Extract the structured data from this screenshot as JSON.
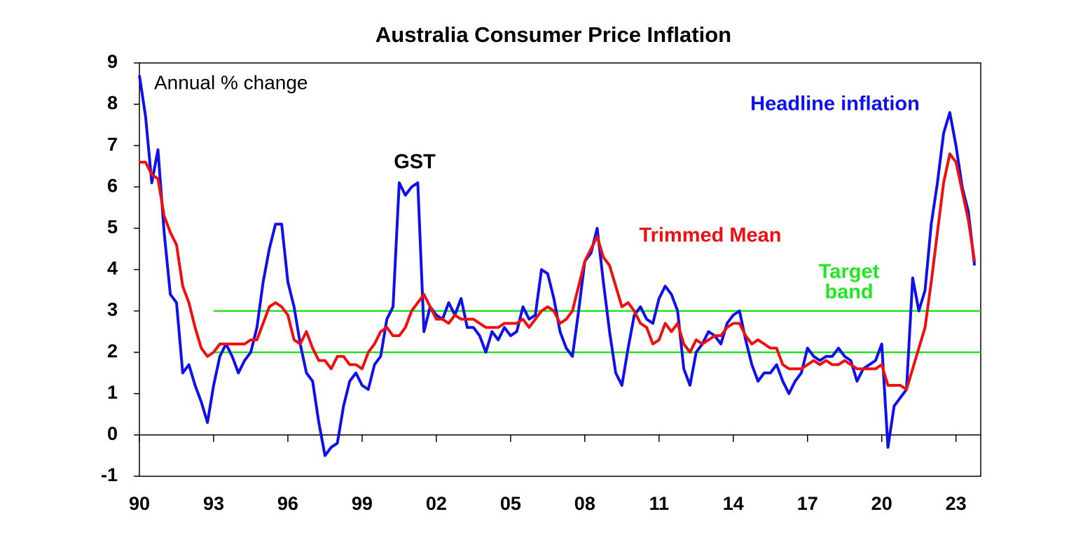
{
  "chart_data": {
    "type": "line",
    "title": "Australia Consumer Price Inflation",
    "ylabel": "Annual % change",
    "categories": [
      "90",
      null,
      null,
      null,
      null,
      null,
      null,
      null,
      null,
      null,
      null,
      null,
      "93",
      null,
      null,
      null,
      null,
      null,
      null,
      null,
      null,
      null,
      null,
      null,
      "96",
      null,
      null,
      null,
      null,
      null,
      null,
      null,
      null,
      null,
      null,
      null,
      "99",
      null,
      null,
      null,
      null,
      null,
      null,
      null,
      null,
      null,
      null,
      null,
      "02",
      null,
      null,
      null,
      null,
      null,
      null,
      null,
      null,
      null,
      null,
      null,
      "05",
      null,
      null,
      null,
      null,
      null,
      null,
      null,
      null,
      null,
      null,
      null,
      "08",
      null,
      null,
      null,
      null,
      null,
      null,
      null,
      null,
      null,
      null,
      null,
      "11",
      null,
      null,
      null,
      null,
      null,
      null,
      null,
      null,
      null,
      null,
      null,
      "14",
      null,
      null,
      null,
      null,
      null,
      null,
      null,
      null,
      null,
      null,
      null,
      "17",
      null,
      null,
      null,
      null,
      null,
      null,
      null,
      null,
      null,
      null,
      null,
      "20",
      null,
      null,
      null,
      null,
      null,
      null,
      null,
      null,
      null,
      null,
      null,
      "23",
      null,
      null,
      null
    ],
    "series": [
      {
        "name": "Headline inflation",
        "color": "#1010e8",
        "values": [
          8.7,
          7.7,
          6.1,
          6.9,
          4.9,
          3.4,
          3.2,
          1.5,
          1.7,
          1.2,
          0.8,
          0.3,
          1.2,
          1.9,
          2.2,
          1.9,
          1.5,
          1.8,
          2.0,
          2.6,
          3.7,
          4.5,
          5.1,
          5.1,
          3.7,
          3.1,
          2.2,
          1.5,
          1.3,
          0.3,
          -0.5,
          -0.3,
          -0.2,
          0.7,
          1.3,
          1.5,
          1.2,
          1.1,
          1.7,
          1.9,
          2.8,
          3.1,
          6.1,
          5.8,
          6.0,
          6.1,
          2.5,
          3.1,
          2.9,
          2.8,
          3.2,
          2.9,
          3.3,
          2.6,
          2.6,
          2.4,
          2.0,
          2.5,
          2.3,
          2.6,
          2.4,
          2.5,
          3.1,
          2.8,
          2.9,
          4.0,
          3.9,
          3.3,
          2.5,
          2.1,
          1.9,
          3.0,
          4.2,
          4.4,
          5.0,
          3.7,
          2.5,
          1.5,
          1.2,
          2.1,
          2.9,
          3.1,
          2.8,
          2.7,
          3.3,
          3.6,
          3.4,
          3.0,
          1.6,
          1.2,
          2.0,
          2.2,
          2.5,
          2.4,
          2.2,
          2.7,
          2.9,
          3.0,
          2.3,
          1.7,
          1.3,
          1.5,
          1.5,
          1.7,
          1.3,
          1.0,
          1.3,
          1.5,
          2.1,
          1.9,
          1.8,
          1.9,
          1.9,
          2.1,
          1.9,
          1.8,
          1.3,
          1.6,
          1.7,
          1.8,
          2.2,
          -0.3,
          0.7,
          0.9,
          1.1,
          3.8,
          3.0,
          3.5,
          5.1,
          6.1,
          7.3,
          7.8,
          7.0,
          6.0,
          5.4,
          4.1
        ]
      },
      {
        "name": "Trimmed Mean",
        "color": "#ee1010",
        "values": [
          6.6,
          6.6,
          6.3,
          6.2,
          5.3,
          4.9,
          4.6,
          3.6,
          3.2,
          2.6,
          2.1,
          1.9,
          2.0,
          2.2,
          2.2,
          2.2,
          2.2,
          2.2,
          2.3,
          2.3,
          2.7,
          3.1,
          3.2,
          3.1,
          2.9,
          2.3,
          2.2,
          2.5,
          2.1,
          1.8,
          1.8,
          1.6,
          1.9,
          1.9,
          1.7,
          1.7,
          1.6,
          2.0,
          2.2,
          2.5,
          2.6,
          2.4,
          2.4,
          2.6,
          3.0,
          3.2,
          3.4,
          3.1,
          2.8,
          2.8,
          2.7,
          2.9,
          2.8,
          2.8,
          2.8,
          2.7,
          2.6,
          2.6,
          2.6,
          2.7,
          2.7,
          2.7,
          2.8,
          2.6,
          2.8,
          3.0,
          3.1,
          3.0,
          2.7,
          2.8,
          3.0,
          3.6,
          4.2,
          4.5,
          4.8,
          4.3,
          4.1,
          3.6,
          3.1,
          3.2,
          3.0,
          2.7,
          2.6,
          2.2,
          2.3,
          2.7,
          2.5,
          2.7,
          2.2,
          2.0,
          2.3,
          2.2,
          2.3,
          2.4,
          2.4,
          2.6,
          2.7,
          2.7,
          2.4,
          2.2,
          2.3,
          2.2,
          2.1,
          2.1,
          1.7,
          1.6,
          1.6,
          1.6,
          1.7,
          1.8,
          1.7,
          1.8,
          1.7,
          1.7,
          1.8,
          1.7,
          1.6,
          1.6,
          1.6,
          1.6,
          1.7,
          1.2,
          1.2,
          1.2,
          1.1,
          1.6,
          2.1,
          2.6,
          3.7,
          4.9,
          6.1,
          6.8,
          6.6,
          5.9,
          5.2,
          4.2
        ]
      }
    ],
    "target_band": {
      "label": [
        "Target",
        "band"
      ],
      "values": [
        2,
        3
      ],
      "start": "93",
      "color": "#22e622"
    },
    "annotations": [
      {
        "text": "GST",
        "color": "#000000"
      }
    ],
    "ylim": [
      -1,
      9
    ],
    "yticks": [
      -1,
      0,
      1,
      2,
      3,
      4,
      5,
      6,
      7,
      8,
      9
    ],
    "grid": false
  }
}
